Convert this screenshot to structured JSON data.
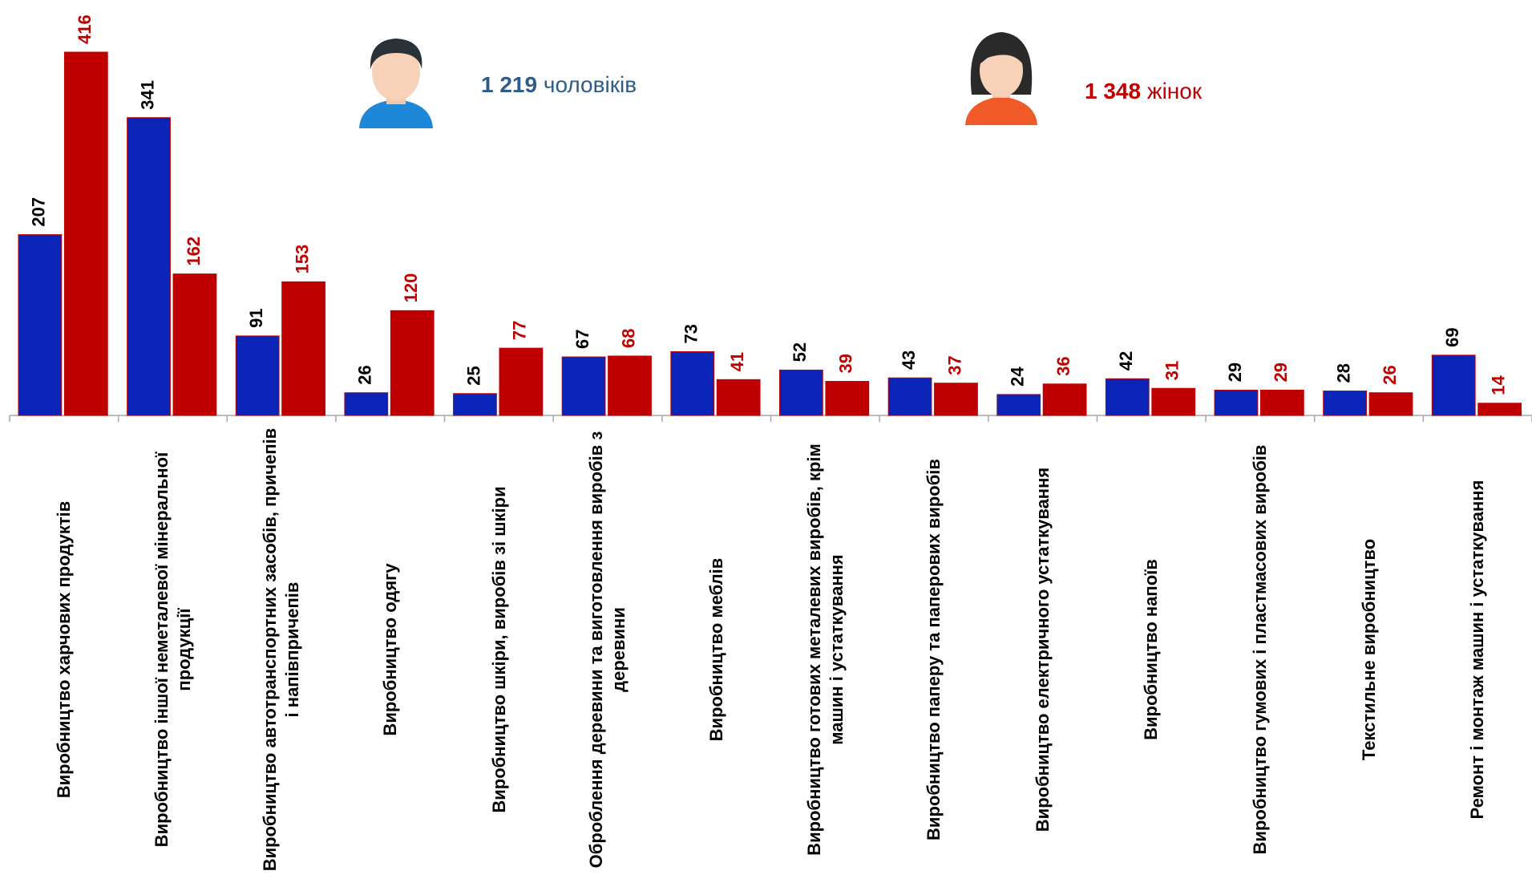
{
  "chart_data": {
    "type": "bar",
    "categories": [
      "Виробництво харчових продуктів",
      "Виробництво іншої неметалевої мінеральної продукції",
      "Виробництво автотранспортних засобів, причепів і напівпричепів",
      "Виробництво одягу",
      "Виробництво шкіри, виробів зі шкіри",
      "Оброблення деревини та виготовлення виробів з деревини",
      "Виробництво меблів",
      "Виробництво готових металевих виробів, крім машин і устаткування",
      "Виробництво паперу та паперових виробів",
      "Виробництво електричного устаткування",
      "Виробництво напоїв",
      "Виробництво гумових і пластмасових виробів",
      "Текстильне виробництво",
      "Ремонт і монтаж машин і устаткування"
    ],
    "series": [
      {
        "color": "#0a24b8",
        "label_color": "#000000",
        "values": [
          207,
          341,
          91,
          26,
          25,
          67,
          73,
          52,
          43,
          24,
          42,
          29,
          28,
          69
        ]
      },
      {
        "color": "#c00000",
        "label_color": "#c00000",
        "values": [
          416,
          162,
          153,
          120,
          77,
          68,
          41,
          39,
          37,
          36,
          31,
          29,
          26,
          14
        ]
      }
    ],
    "ylim": [
      0,
      450
    ],
    "annotations": [
      {
        "value": "1 219",
        "text": "чоловіків",
        "color": "#2e5c8a"
      },
      {
        "value": "1 348",
        "text": "жінок",
        "color": "#c00000"
      }
    ]
  }
}
